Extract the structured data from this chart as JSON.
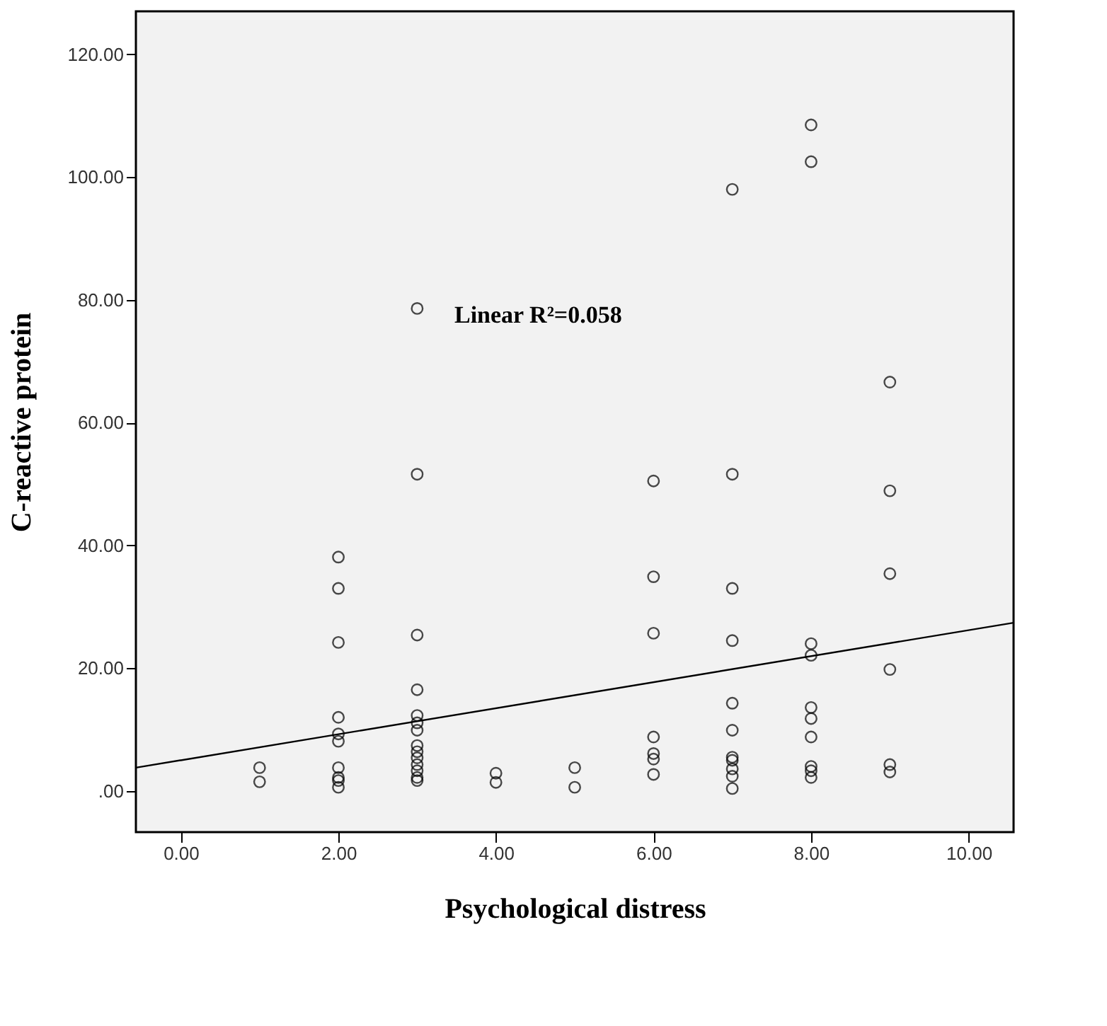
{
  "chart_data": {
    "type": "scatter",
    "xlabel": "Psychological distress",
    "ylabel": "C-reactive protein",
    "annotations": [
      "Linear R²=0.058"
    ],
    "xlim": [
      -0.57,
      10.57
    ],
    "ylim": [
      -6.7,
      127
    ],
    "xticks": [
      {
        "value": 0,
        "label": "0.00"
      },
      {
        "value": 2,
        "label": "2.00"
      },
      {
        "value": 4,
        "label": "4.00"
      },
      {
        "value": 6,
        "label": "6.00"
      },
      {
        "value": 8,
        "label": "8.00"
      },
      {
        "value": 10,
        "label": "10.00"
      }
    ],
    "yticks": [
      {
        "value": 0,
        "label": ".00"
      },
      {
        "value": 20,
        "label": "20.00"
      },
      {
        "value": 40,
        "label": "40.00"
      },
      {
        "value": 60,
        "label": "60.00"
      },
      {
        "value": 80,
        "label": "80.00"
      },
      {
        "value": 100,
        "label": "100.00"
      },
      {
        "value": 120,
        "label": "120.00"
      }
    ],
    "grid": false,
    "series": [
      {
        "marker": "circle",
        "color": "#000000",
        "x": [
          1,
          1,
          2,
          2,
          2,
          2,
          2,
          2,
          2,
          2,
          2,
          2,
          3,
          3,
          3,
          3,
          3,
          3,
          3,
          3,
          3,
          3,
          3,
          3,
          3,
          3,
          4,
          4,
          5,
          5,
          6,
          6,
          6,
          6,
          6,
          6,
          6,
          7,
          7,
          7,
          7,
          7,
          7,
          7,
          7,
          7,
          7,
          7,
          8,
          8,
          8,
          8,
          8,
          8,
          8,
          8,
          8,
          8,
          9,
          9,
          9,
          9,
          9,
          9
        ],
        "values": [
          3.8,
          1.5,
          38.1,
          33.0,
          24.2,
          12.0,
          9.3,
          8.1,
          3.8,
          2.2,
          1.7,
          0.6,
          78.6,
          51.6,
          25.4,
          16.5,
          12.3,
          11.1,
          9.9,
          7.4,
          6.4,
          5.4,
          4.3,
          3.3,
          2.2,
          1.7,
          2.9,
          1.4,
          3.8,
          0.6,
          50.5,
          34.9,
          25.7,
          8.8,
          6.1,
          5.2,
          2.7,
          98,
          51.6,
          33.0,
          24.5,
          14.3,
          9.9,
          5.5,
          5.0,
          3.6,
          2.4,
          0.4,
          108.5,
          102.5,
          24.0,
          22.1,
          13.6,
          11.8,
          8.8,
          4.0,
          3.3,
          2.2,
          66.6,
          48.9,
          35.4,
          19.8,
          4.3,
          3.1
        ]
      },
      {
        "type": "line",
        "line_style": "solid",
        "color": "#000000",
        "x": [
          -0.57,
          10.57
        ],
        "values": [
          3.8,
          27.4
        ]
      }
    ]
  }
}
